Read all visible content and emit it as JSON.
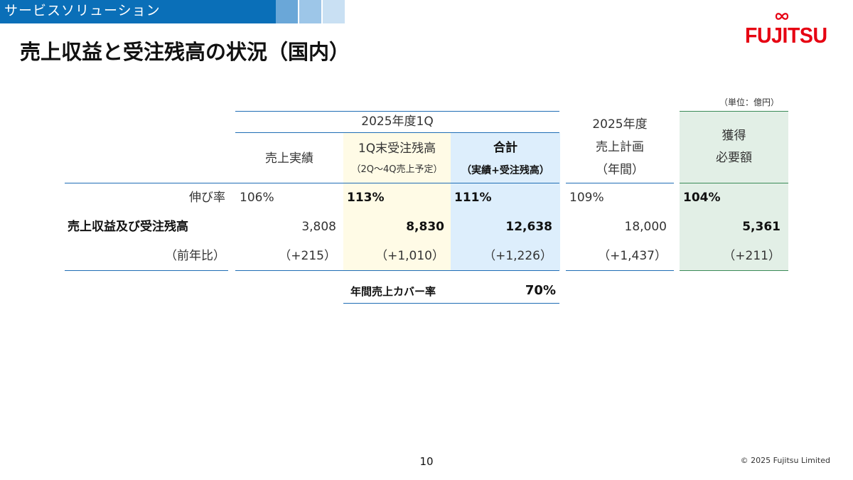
{
  "header": {
    "section_label": "サービスソリューション",
    "title": "売上収益と受注残高の状況（国内）"
  },
  "logo": {
    "text": "FUJITSU",
    "brand_color": "#e60012"
  },
  "unit_note": "（単位：億円）",
  "table": {
    "group_header": "2025年度1Q",
    "columns": {
      "actual": {
        "label": "売上実績"
      },
      "backlog": {
        "label": "1Q末受注残高",
        "sub": "（2Q～4Q売上予定）"
      },
      "total": {
        "label": "合計",
        "sub": "（実績+受注残高）"
      },
      "plan": {
        "line1": "2025年度",
        "line2": "売上計画",
        "line3": "（年間）"
      },
      "required": {
        "line1": "獲得",
        "line2": "必要額"
      }
    },
    "rows": {
      "growth": {
        "label": "伸び率",
        "actual": "106%",
        "backlog": "113%",
        "total": "111%",
        "plan": "109%",
        "required": "104%"
      },
      "revenue": {
        "label": "売上収益及び受注残高",
        "actual": "3,808",
        "backlog": "8,830",
        "total": "12,638",
        "plan": "18,000",
        "required": "5,361"
      },
      "yoy": {
        "label": "（前年比）",
        "actual": "（+215）",
        "backlog": "（+1,010）",
        "total": "（+1,226）",
        "plan": "（+1,437）",
        "required": "（+211）"
      }
    },
    "coverage": {
      "label": "年間売上カバー率",
      "value": "70%"
    }
  },
  "colors": {
    "band": "#0a6fb8",
    "band_squares": [
      "#6aa7d8",
      "#9dc6e8",
      "#c9e0f3"
    ],
    "backlog_bg": "#fffbe6",
    "total_bg": "#ddeefc",
    "required_bg": "#e2efe6",
    "rule_blue": "#1f6db5",
    "rule_green": "#3a8a57"
  },
  "footer": {
    "page_number": "10",
    "copyright": "© 2025 Fujitsu Limited"
  }
}
